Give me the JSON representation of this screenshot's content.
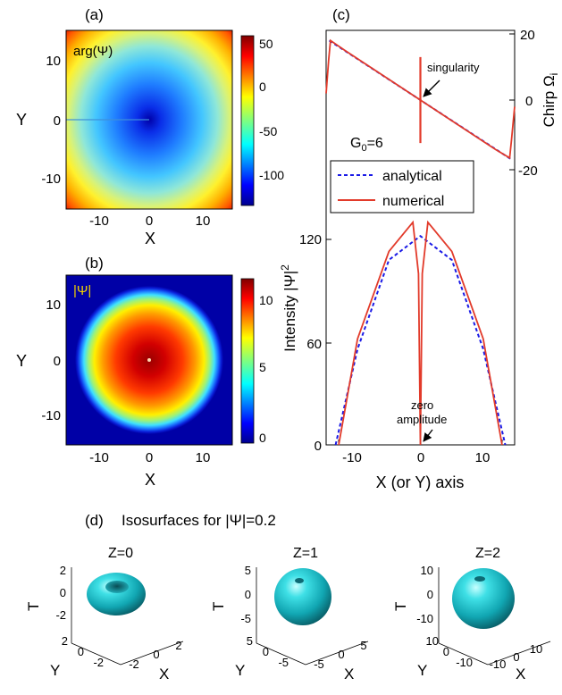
{
  "panels": {
    "a": {
      "label": "(a)",
      "inset_label": "arg(Ψ)",
      "xlabel": "X",
      "ylabel": "Y",
      "xticks": [
        "-10",
        "0",
        "10"
      ],
      "yticks": [
        "10",
        "0",
        "-10"
      ],
      "colorbar_ticks": [
        "50",
        "0",
        "-50",
        "-100"
      ]
    },
    "b": {
      "label": "(b)",
      "inset_label": "|Ψ|",
      "xlabel": "X",
      "ylabel": "Y",
      "xticks": [
        "-10",
        "0",
        "10"
      ],
      "yticks": [
        "10",
        "0",
        "-10"
      ],
      "colorbar_ticks": [
        "10",
        "5",
        "0"
      ]
    },
    "c": {
      "label": "(c)",
      "right_axis_label": "Chirp Ω",
      "right_axis_sub": "i",
      "left_axis_label": "Intensity |Ψ|",
      "left_axis_sup": "2",
      "xlabel": "X (or Y) axis",
      "xticks": [
        "-10",
        "0",
        "10"
      ],
      "right_ticks": [
        "20",
        "0",
        "-20"
      ],
      "left_ticks": [
        "120",
        "60",
        "0"
      ],
      "param_main": "G",
      "param_sub": "0",
      "param_value": "=6",
      "annotation_top": "singularity",
      "annotation_bottom_1": "zero",
      "annotation_bottom_2": "amplitude",
      "legend": [
        "analytical",
        "numerical"
      ]
    },
    "d": {
      "label": "(d)",
      "title": "Isosurfaces for |Ψ|=0.2",
      "subplots": [
        {
          "title": "Z=0",
          "tticks": [
            "2",
            "0",
            "-2"
          ],
          "yticks": [
            "2",
            "0",
            "-2"
          ],
          "xticks": [
            "-2",
            "0",
            "2"
          ]
        },
        {
          "title": "Z=1",
          "tticks": [
            "5",
            "0",
            "-5"
          ],
          "yticks": [
            "5",
            "0",
            "-5"
          ],
          "xticks": [
            "-5",
            "0",
            "5"
          ]
        },
        {
          "title": "Z=2",
          "tticks": [
            "10",
            "0",
            "-10"
          ],
          "yticks": [
            "10",
            "0",
            "-10"
          ],
          "xticks": [
            "-10",
            "0",
            "10"
          ]
        }
      ],
      "axis_T": "T",
      "axis_Y": "Y",
      "axis_X": "X"
    }
  },
  "chart_data": [
    {
      "type": "heatmap",
      "panel": "a",
      "quantity": "arg(Ψ)",
      "xlim": [
        -15,
        15
      ],
      "ylim": [
        -15,
        15
      ],
      "clim": [
        -130,
        60
      ],
      "colormap": "jet",
      "model": "radial parabola, max at corners, min at center",
      "center_value": -125,
      "corner_value": 55
    },
    {
      "type": "heatmap",
      "panel": "b",
      "quantity": "|Ψ|",
      "xlim": [
        -15,
        15
      ],
      "ylim": [
        -15,
        15
      ],
      "clim": [
        0,
        11.5
      ],
      "colormap": "jet",
      "model": "radial amplitude, max at center, zero beyond r≈13.5",
      "peak_value": 11.2,
      "zero_radius": 13.5
    },
    {
      "type": "line",
      "panel": "c-top",
      "ylabel": "Chirp Ωi",
      "xlim": [
        -15,
        15
      ],
      "ylim": [
        -20,
        20
      ],
      "series": [
        {
          "name": "analytical",
          "x": [
            -14.5,
            14.5
          ],
          "y": [
            18,
            -18
          ]
        },
        {
          "name": "numerical",
          "x": [
            -15,
            -14.6,
            -14.3,
            -12,
            0,
            12,
            14.2,
            14.5,
            15
          ],
          "y": [
            2,
            12,
            18,
            15,
            0,
            -15,
            -17.5,
            -12,
            -2
          ]
        }
      ]
    },
    {
      "type": "line",
      "panel": "c-bottom",
      "ylabel": "Intensity |Ψ|2",
      "xlim": [
        -15,
        15
      ],
      "ylim": [
        0,
        130
      ],
      "series": [
        {
          "name": "analytical",
          "x": [
            -13.5,
            -10,
            -5,
            0,
            5,
            10,
            13.5
          ],
          "y": [
            0,
            56,
            108,
            122,
            108,
            56,
            0
          ]
        },
        {
          "name": "numerical",
          "x": [
            -13.0,
            -10,
            -5,
            -1.2,
            -0.3,
            0,
            0.3,
            1.2,
            5,
            10,
            13.0
          ],
          "y": [
            0,
            62,
            113,
            130,
            100,
            0,
            100,
            130,
            113,
            62,
            0
          ]
        }
      ]
    }
  ]
}
